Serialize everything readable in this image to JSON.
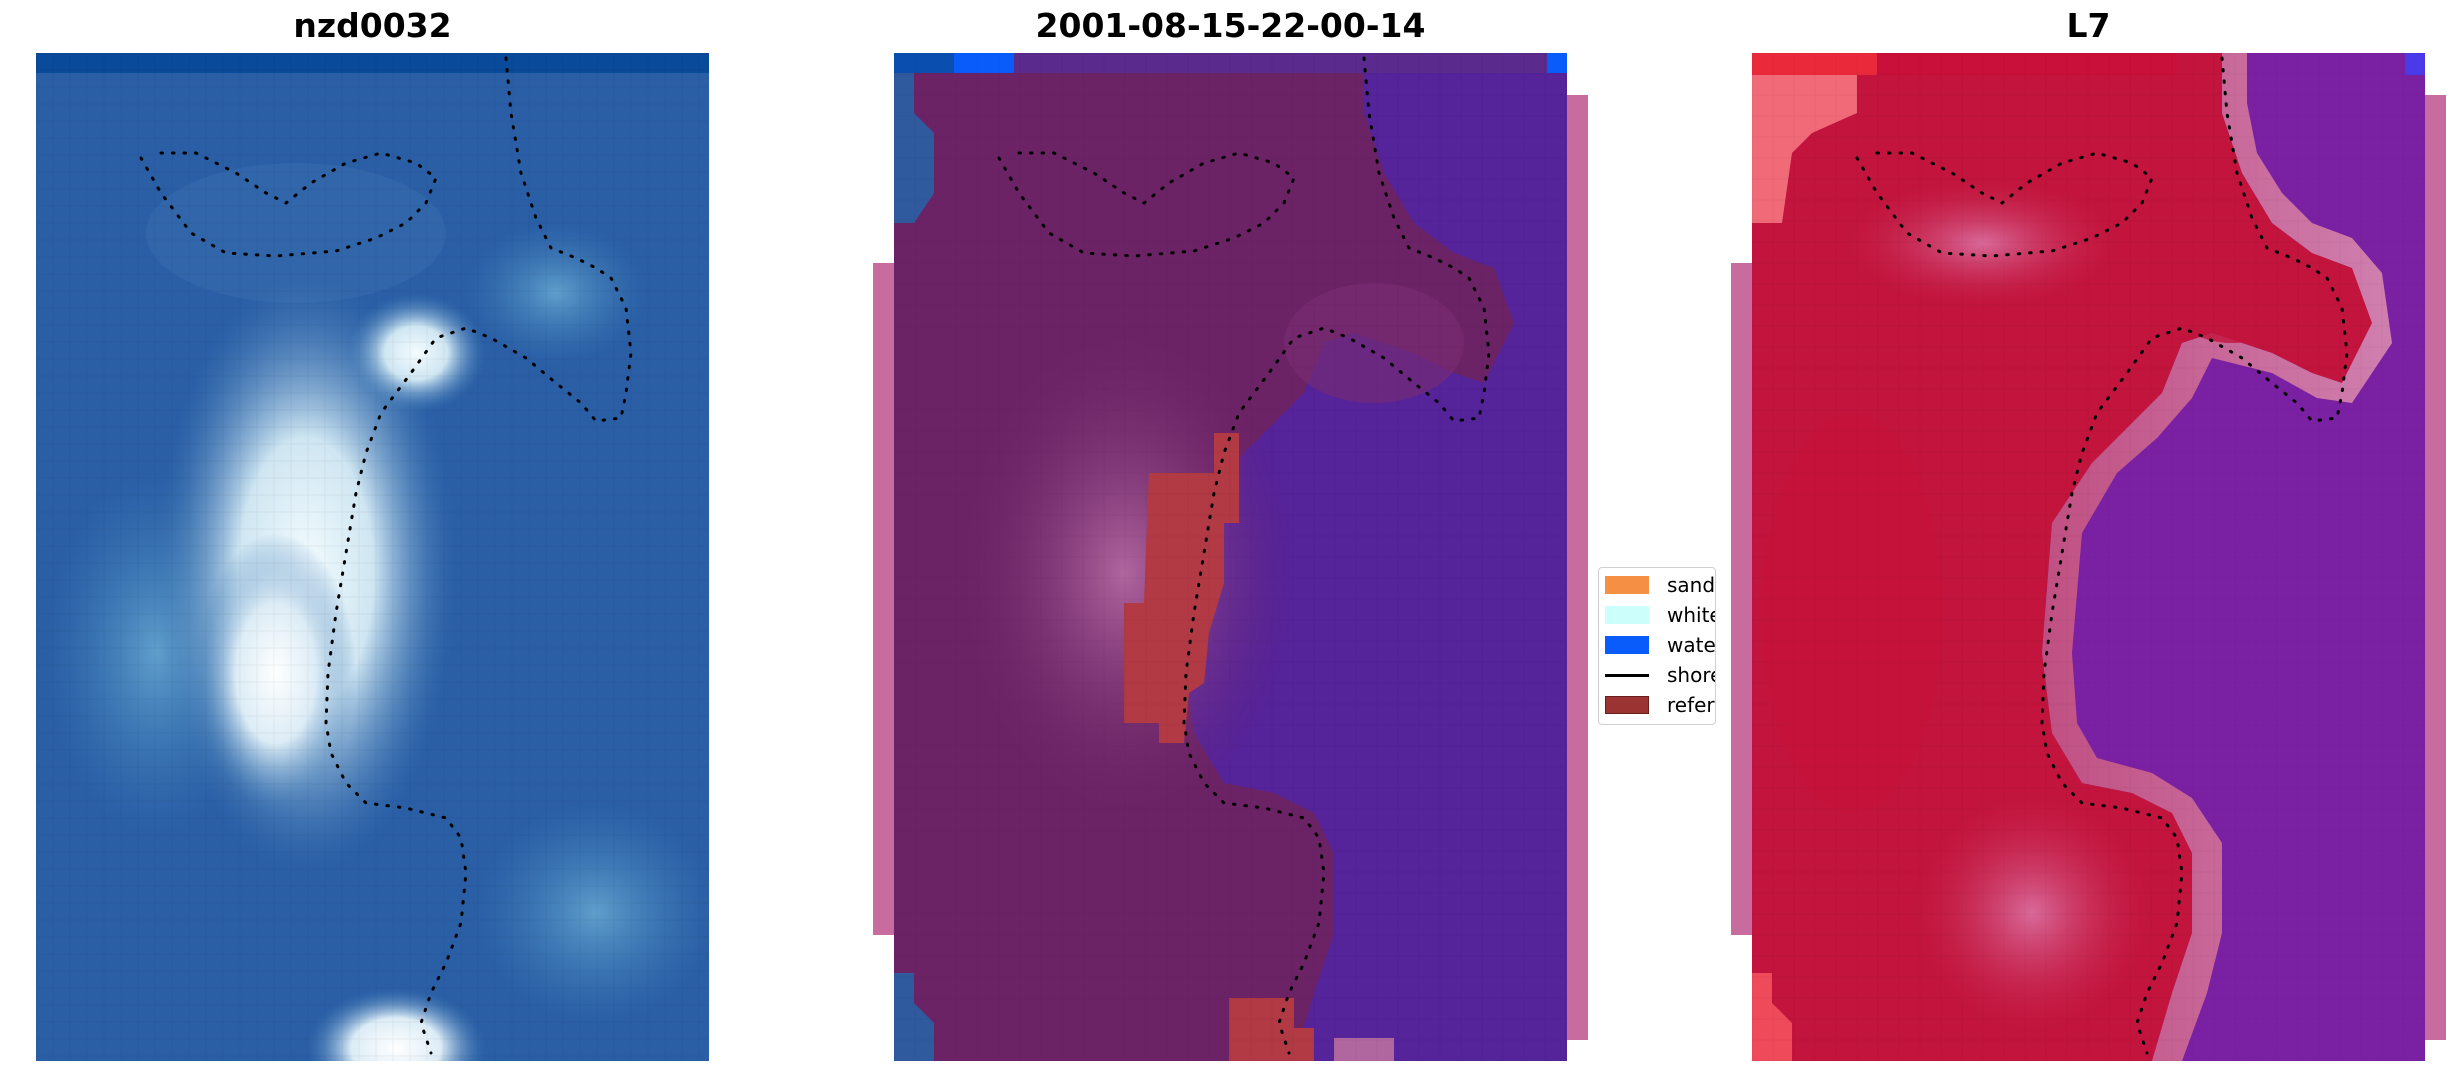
{
  "panels": [
    {
      "title": "nzd0032"
    },
    {
      "title": "2001-08-15-22-00-14"
    },
    {
      "title": "L7"
    }
  ],
  "legend": {
    "items": [
      {
        "label": "sand",
        "color": "#f58f43",
        "kind": "patch"
      },
      {
        "label": "whitewa",
        "color": "#ccfffb",
        "kind": "patch"
      },
      {
        "label": "water",
        "color": "#0a5cfa",
        "kind": "patch"
      },
      {
        "label": "shoreline",
        "color": "#000000",
        "kind": "line"
      },
      {
        "label": "referenc",
        "color": "#9c3333",
        "kind": "patch"
      }
    ]
  },
  "colors": {
    "rgb_water_deep": "#21529e",
    "rgb_water_light": "#4a8ac0",
    "rgb_whitewater": "#dff1f8",
    "overlay_water": "#55239a",
    "overlay_land": "#6b2366",
    "overlay_land_light": "#9a4c8c",
    "overlay_reference": "#b23a45",
    "index_high": "#c2143c",
    "index_low": "#7a20a2",
    "sidebar": "#c86ca0"
  }
}
